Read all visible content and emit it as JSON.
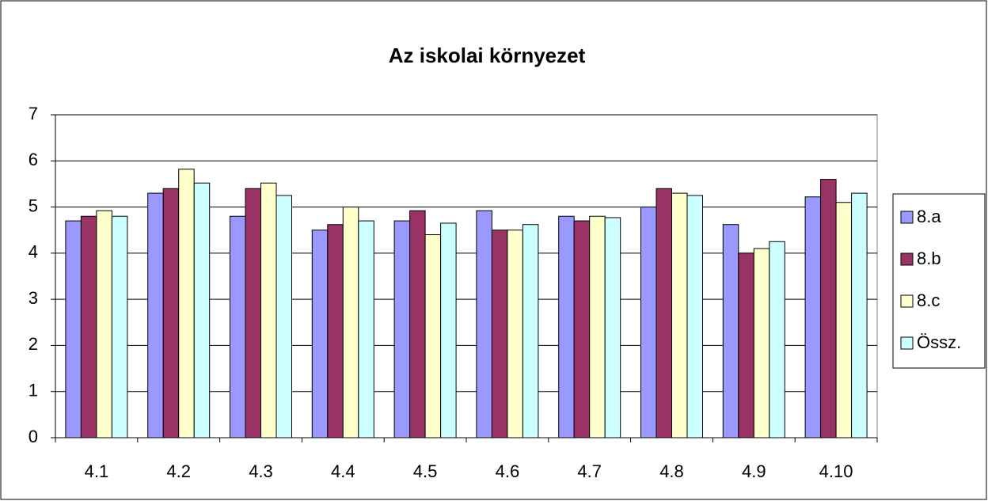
{
  "chart_data": {
    "type": "bar",
    "title": "Az iskolai környezet",
    "categories": [
      "4.1",
      "4.2",
      "4.3",
      "4.4",
      "4.5",
      "4.6",
      "4.7",
      "4.8",
      "4.9",
      "4.10"
    ],
    "series": [
      {
        "name": "8.a",
        "color": "#9999ff",
        "values": [
          4.7,
          5.3,
          4.8,
          4.5,
          4.7,
          4.92,
          4.8,
          5.0,
          4.62,
          5.22
        ]
      },
      {
        "name": "8.b",
        "color": "#993366",
        "values": [
          4.8,
          5.4,
          5.4,
          4.62,
          4.92,
          4.5,
          4.7,
          5.4,
          4.0,
          5.6
        ]
      },
      {
        "name": "8.c",
        "color": "#ffffcc",
        "values": [
          4.92,
          5.82,
          5.52,
          5.0,
          4.4,
          4.5,
          4.8,
          5.3,
          4.1,
          5.1
        ]
      },
      {
        "name": "Össz.",
        "color": "#ccffff",
        "values": [
          4.8,
          5.52,
          5.25,
          4.7,
          4.65,
          4.62,
          4.77,
          5.25,
          4.25,
          5.3
        ]
      }
    ],
    "ylim": [
      0,
      7
    ],
    "yticks": [
      0,
      1,
      2,
      3,
      4,
      5,
      6,
      7
    ],
    "grid": true,
    "legend": "right"
  }
}
